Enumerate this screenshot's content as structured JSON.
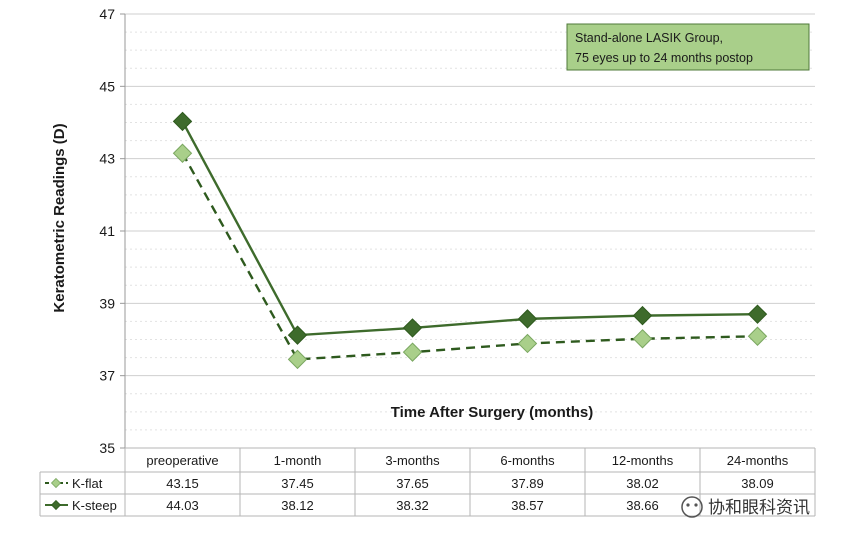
{
  "chart_data": {
    "type": "line",
    "title": "",
    "xlabel": "Time After Surgery (months)",
    "ylabel": "Keratometric Readings (D)",
    "ylim": [
      35,
      47
    ],
    "yticks": [
      35,
      37,
      39,
      41,
      43,
      45,
      47
    ],
    "grid": true,
    "categories": [
      "preoperative",
      "1-month",
      "3-months",
      "6-months",
      "12-months",
      "24-months"
    ],
    "series": [
      {
        "name": "K-flat",
        "values": [
          43.15,
          37.45,
          37.65,
          37.89,
          38.02,
          38.09
        ],
        "value_labels": [
          "43.15",
          "37.45",
          "37.65",
          "37.89",
          "38.02",
          "38.09"
        ],
        "color": "#a9cf8a",
        "line_color": "#2e5a1e",
        "dashed": true
      },
      {
        "name": "K-steep",
        "values": [
          44.03,
          38.12,
          38.32,
          38.57,
          38.66,
          38.7
        ],
        "value_labels": [
          "44.03",
          "38.12",
          "38.32",
          "38.57",
          "38.66",
          ""
        ],
        "color": "#3e6b2c",
        "line_color": "#3e6b2c",
        "dashed": false
      }
    ],
    "annotation": {
      "lines": [
        "Stand-alone LASIK Group,",
        "75 eyes up to 24 months postop"
      ],
      "fill": "#a9cf8a"
    }
  },
  "watermark": {
    "text": "协和眼科资讯"
  }
}
